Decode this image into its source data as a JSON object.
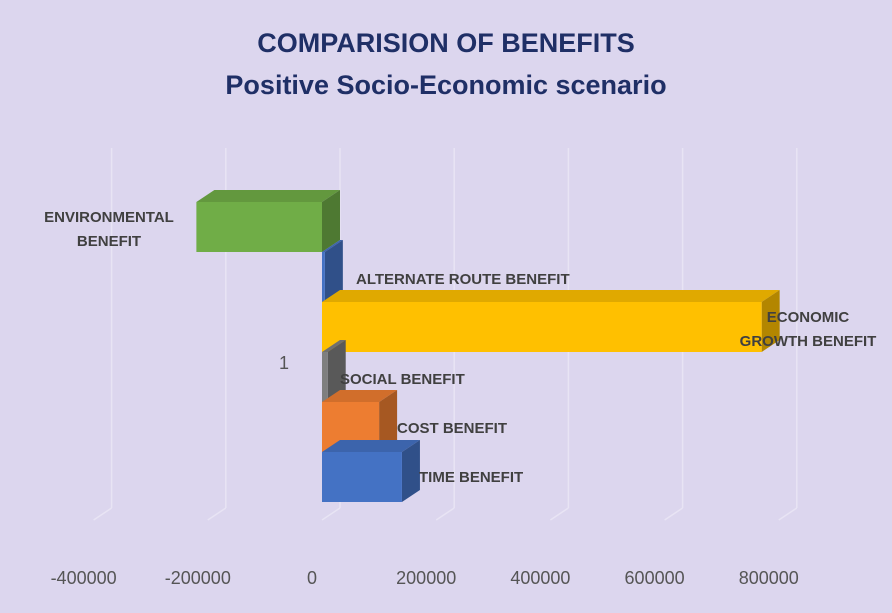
{
  "chart_data": {
    "type": "bar",
    "orientation": "horizontal",
    "style": "3d",
    "title": "COMPARISION OF BENEFITS",
    "subtitle": "Positive Socio-Economic scenario",
    "y_category_label": "1",
    "categories": [
      "ENVIRONMENTAL BENEFIT",
      "ALTERNATE ROUTE BENEFIT",
      "ECONOMIC GROWTH BENEFIT",
      "SOCIAL BENEFIT",
      "COST BENEFIT",
      "TIME BENEFIT"
    ],
    "label_lines": [
      [
        "ENVIRONMENTAL",
        "BENEFIT"
      ],
      [
        "ALTERNATE ROUTE BENEFIT"
      ],
      [
        "ECONOMIC",
        "GROWTH BENEFIT"
      ],
      [
        "SOCIAL BENEFIT"
      ],
      [
        "COST BENEFIT"
      ],
      [
        "TIME BENEFIT"
      ]
    ],
    "values": [
      -220000,
      5000,
      770000,
      10000,
      100000,
      140000
    ],
    "colors": [
      "#70ad47",
      "#4472c4",
      "#ffc000",
      "#7f7f7f",
      "#ed7d31",
      "#4472c4"
    ],
    "xlim": [
      -400000,
      800000
    ],
    "xticks": [
      "-400000",
      "-200000",
      "0",
      "200000",
      "400000",
      "600000",
      "800000"
    ],
    "grid": true,
    "legend": "none"
  }
}
